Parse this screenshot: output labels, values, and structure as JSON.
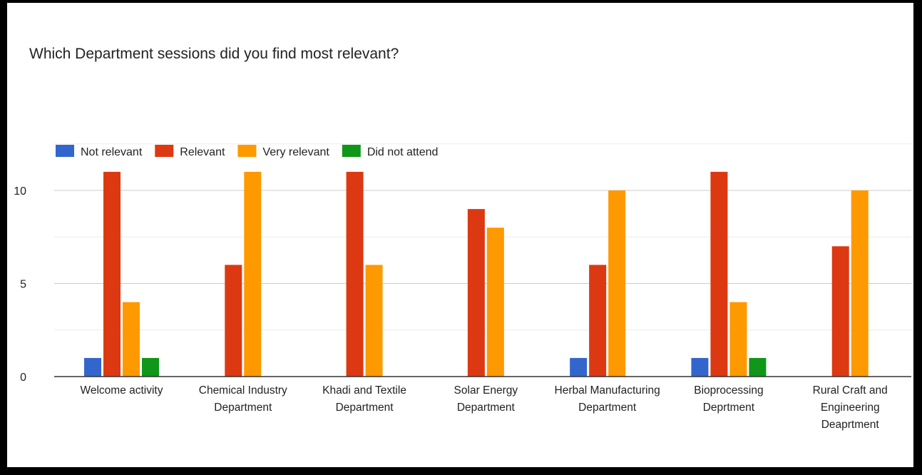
{
  "chart_data": {
    "type": "bar",
    "title": "Which  Department sessions did you find most relevant?",
    "categories": [
      [
        "Welcome activity"
      ],
      [
        "Chemical Industry",
        "Department"
      ],
      [
        "Khadi and Textile",
        "Department"
      ],
      [
        "Solar Energy",
        "Department"
      ],
      [
        "Herbal Manufacturing",
        "Department"
      ],
      [
        "Bioprocessing",
        "Deprtment"
      ],
      [
        "Rural Craft and",
        "Engineering",
        "Deaprtment"
      ]
    ],
    "series": [
      {
        "name": "Not relevant",
        "color": "#3366cc",
        "values": [
          1,
          0,
          0,
          0,
          1,
          1,
          0
        ]
      },
      {
        "name": "Relevant",
        "color": "#dc3912",
        "values": [
          11,
          6,
          11,
          9,
          6,
          11,
          7
        ]
      },
      {
        "name": "Very relevant",
        "color": "#ff9900",
        "values": [
          4,
          11,
          6,
          8,
          10,
          4,
          10
        ]
      },
      {
        "name": "Did not attend",
        "color": "#109618",
        "values": [
          1,
          0,
          0,
          0,
          0,
          1,
          0
        ]
      }
    ],
    "yticks": [
      0,
      5,
      10
    ],
    "ylim": [
      0,
      12.5
    ],
    "grid": true,
    "legend_position": "top-left"
  }
}
